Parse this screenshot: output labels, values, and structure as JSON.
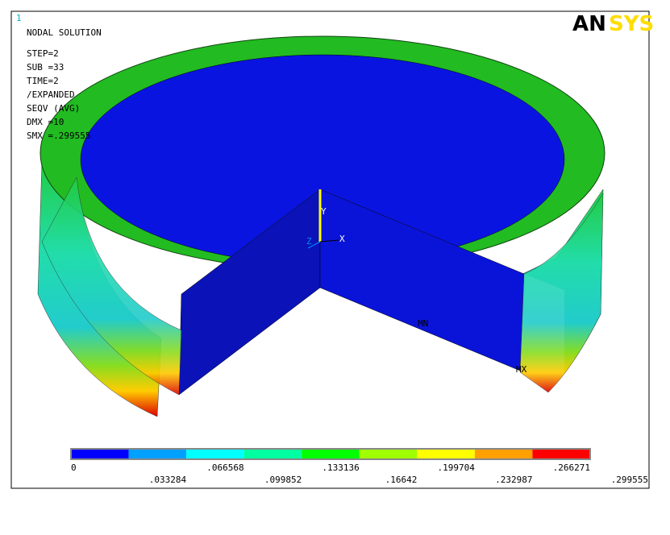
{
  "window_number": "1",
  "info": [
    "NODAL SOLUTION",
    "STEP=2",
    "SUB =33",
    "TIME=2",
    "/EXPANDED",
    "SEQV     (AVG)",
    "DMX =10",
    "SMX =.299555"
  ],
  "logo": {
    "left": "AN",
    "right": "SYS"
  },
  "markers": {
    "min": "MN",
    "max": "MX"
  },
  "triad": {
    "x": "X",
    "y": "Y",
    "z": "Z"
  },
  "legend": {
    "labels": [
      "0",
      ".033284",
      ".066568",
      ".099852",
      ".133136",
      ".16642",
      ".199704",
      ".232987",
      ".266271",
      ".299555"
    ],
    "colors": [
      "#0000ff",
      "#00a0ff",
      "#00ffff",
      "#00ffa0",
      "#00ff00",
      "#a0ff00",
      "#ffff00",
      "#ffa000",
      "#ff0000"
    ]
  }
}
